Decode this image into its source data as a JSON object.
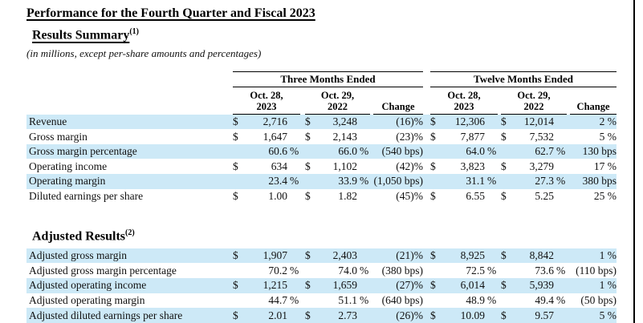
{
  "page": {
    "title": "Performance for the Fourth Quarter and Fiscal 2023",
    "section1_heading": "Results Summary",
    "section1_sup": "(1)",
    "subtitle": "(in millions, except per-share amounts and percentages)",
    "section2_heading": "Adjusted Results",
    "section2_sup": "(2)"
  },
  "table": {
    "group_headers": [
      "Three Months Ended",
      "Twelve Months Ended"
    ],
    "columns": [
      {
        "line1": "Oct. 28,",
        "line2": "2023"
      },
      {
        "line1": "Oct. 29,",
        "line2": "2022"
      },
      {
        "label": "Change"
      },
      {
        "line1": "Oct. 28,",
        "line2": "2023"
      },
      {
        "line1": "Oct. 29,",
        "line2": "2022"
      },
      {
        "label": "Change"
      }
    ],
    "summary_rows": [
      {
        "label": "Revenue",
        "highlight": true,
        "cells": [
          {
            "s": "$",
            "v": "2,716",
            "x": ""
          },
          {
            "s": "$",
            "v": "3,248",
            "x": ""
          },
          {
            "c": "(16)%"
          },
          {
            "s": "$",
            "v": "12,306",
            "x": ""
          },
          {
            "s": "$",
            "v": "12,014",
            "x": ""
          },
          {
            "c": "2 %"
          }
        ]
      },
      {
        "label": "Gross margin",
        "highlight": false,
        "cells": [
          {
            "s": "$",
            "v": "1,647",
            "x": ""
          },
          {
            "s": "$",
            "v": "2,143",
            "x": ""
          },
          {
            "c": "(23)%"
          },
          {
            "s": "$",
            "v": "7,877",
            "x": ""
          },
          {
            "s": "$",
            "v": "7,532",
            "x": ""
          },
          {
            "c": "5 %"
          }
        ]
      },
      {
        "label": "Gross margin percentage",
        "highlight": true,
        "cells": [
          {
            "s": "",
            "v": "60.6",
            "x": "%"
          },
          {
            "s": "",
            "v": "66.0",
            "x": "%"
          },
          {
            "c": "(540 bps)"
          },
          {
            "s": "",
            "v": "64.0",
            "x": "%"
          },
          {
            "s": "",
            "v": "62.7",
            "x": "%"
          },
          {
            "c": "130 bps"
          }
        ]
      },
      {
        "label": "Operating income",
        "highlight": false,
        "cells": [
          {
            "s": "$",
            "v": "634",
            "x": ""
          },
          {
            "s": "$",
            "v": "1,102",
            "x": ""
          },
          {
            "c": "(42)%"
          },
          {
            "s": "$",
            "v": "3,823",
            "x": ""
          },
          {
            "s": "$",
            "v": "3,279",
            "x": ""
          },
          {
            "c": "17 %"
          }
        ]
      },
      {
        "label": "Operating margin",
        "highlight": true,
        "cells": [
          {
            "s": "",
            "v": "23.4",
            "x": "%"
          },
          {
            "s": "",
            "v": "33.9",
            "x": "%"
          },
          {
            "c": "(1,050 bps)"
          },
          {
            "s": "",
            "v": "31.1",
            "x": "%"
          },
          {
            "s": "",
            "v": "27.3",
            "x": "%"
          },
          {
            "c": "380 bps"
          }
        ]
      },
      {
        "label": "Diluted earnings per share",
        "highlight": false,
        "cells": [
          {
            "s": "$",
            "v": "1.00",
            "x": ""
          },
          {
            "s": "$",
            "v": "1.82",
            "x": ""
          },
          {
            "c": "(45)%"
          },
          {
            "s": "$",
            "v": "6.55",
            "x": ""
          },
          {
            "s": "$",
            "v": "5.25",
            "x": ""
          },
          {
            "c": "25 %"
          }
        ]
      }
    ],
    "adjusted_rows": [
      {
        "label": "Adjusted gross margin",
        "highlight": true,
        "cells": [
          {
            "s": "$",
            "v": "1,907",
            "x": ""
          },
          {
            "s": "$",
            "v": "2,403",
            "x": ""
          },
          {
            "c": "(21)%"
          },
          {
            "s": "$",
            "v": "8,925",
            "x": ""
          },
          {
            "s": "$",
            "v": "8,842",
            "x": ""
          },
          {
            "c": "1 %"
          }
        ]
      },
      {
        "label": "Adjusted gross margin percentage",
        "highlight": false,
        "cells": [
          {
            "s": "",
            "v": "70.2",
            "x": "%"
          },
          {
            "s": "",
            "v": "74.0",
            "x": "%"
          },
          {
            "c": "(380 bps)"
          },
          {
            "s": "",
            "v": "72.5",
            "x": "%"
          },
          {
            "s": "",
            "v": "73.6",
            "x": "%"
          },
          {
            "c": "(110 bps)"
          }
        ]
      },
      {
        "label": "Adjusted operating income",
        "highlight": true,
        "cells": [
          {
            "s": "$",
            "v": "1,215",
            "x": ""
          },
          {
            "s": "$",
            "v": "1,659",
            "x": ""
          },
          {
            "c": "(27)%"
          },
          {
            "s": "$",
            "v": "6,014",
            "x": ""
          },
          {
            "s": "$",
            "v": "5,939",
            "x": ""
          },
          {
            "c": "1 %"
          }
        ]
      },
      {
        "label": "Adjusted operating margin",
        "highlight": false,
        "cells": [
          {
            "s": "",
            "v": "44.7",
            "x": "%"
          },
          {
            "s": "",
            "v": "51.1",
            "x": "%"
          },
          {
            "c": "(640 bps)"
          },
          {
            "s": "",
            "v": "48.9",
            "x": "%"
          },
          {
            "s": "",
            "v": "49.4",
            "x": "%"
          },
          {
            "c": "(50 bps)"
          }
        ]
      },
      {
        "label": "Adjusted diluted earnings per share",
        "highlight": true,
        "cells": [
          {
            "s": "$",
            "v": "2.01",
            "x": ""
          },
          {
            "s": "$",
            "v": "2.73",
            "x": ""
          },
          {
            "c": "(26)%"
          },
          {
            "s": "$",
            "v": "10.09",
            "x": ""
          },
          {
            "s": "$",
            "v": "9.57",
            "x": ""
          },
          {
            "c": "5 %"
          }
        ]
      }
    ],
    "highlight_color": "#cde9f7"
  }
}
